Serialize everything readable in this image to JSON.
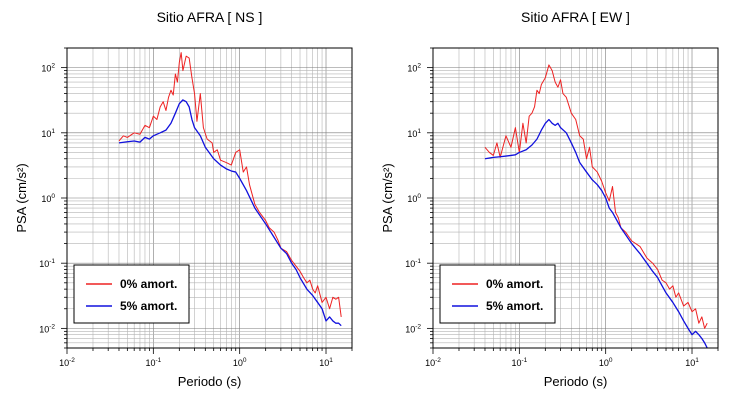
{
  "chart_data": [
    {
      "type": "line",
      "title": "Sitio AFRA [ NS ]",
      "xlabel": "Periodo (s)",
      "ylabel": "PSA (cm/s²)",
      "x_scale": "log",
      "y_scale": "log",
      "xlim": [
        0.01,
        20
      ],
      "ylim": [
        0.005,
        200
      ],
      "x_ticks": [
        {
          "base": "10",
          "exp": "-2"
        },
        {
          "base": "10",
          "exp": "-1"
        },
        {
          "base": "10",
          "exp": "0"
        },
        {
          "base": "10",
          "exp": "1"
        }
      ],
      "y_ticks": [
        {
          "base": "10",
          "exp": "-2"
        },
        {
          "base": "10",
          "exp": "-1"
        },
        {
          "base": "10",
          "exp": "0"
        },
        {
          "base": "10",
          "exp": "1"
        },
        {
          "base": "10",
          "exp": "2"
        }
      ],
      "grid": true,
      "legend_position": "bottom-left",
      "series": [
        {
          "name": "0% amort.",
          "color": "#ee2222",
          "points": [
            [
              0.04,
              7.5
            ],
            [
              0.045,
              9
            ],
            [
              0.05,
              8.5
            ],
            [
              0.06,
              10
            ],
            [
              0.07,
              9.5
            ],
            [
              0.08,
              13
            ],
            [
              0.09,
              12
            ],
            [
              0.1,
              18
            ],
            [
              0.11,
              16
            ],
            [
              0.12,
              25
            ],
            [
              0.13,
              30
            ],
            [
              0.14,
              22
            ],
            [
              0.15,
              35
            ],
            [
              0.16,
              45
            ],
            [
              0.17,
              38
            ],
            [
              0.18,
              80
            ],
            [
              0.19,
              60
            ],
            [
              0.2,
              120
            ],
            [
              0.21,
              170
            ],
            [
              0.22,
              90
            ],
            [
              0.24,
              150
            ],
            [
              0.26,
              140
            ],
            [
              0.28,
              70
            ],
            [
              0.3,
              40
            ],
            [
              0.32,
              15
            ],
            [
              0.35,
              40
            ],
            [
              0.38,
              12
            ],
            [
              0.42,
              8
            ],
            [
              0.48,
              7
            ],
            [
              0.5,
              5
            ],
            [
              0.55,
              5.5
            ],
            [
              0.6,
              3.8
            ],
            [
              0.7,
              3.5
            ],
            [
              0.8,
              3.2
            ],
            [
              0.9,
              5
            ],
            [
              1.0,
              5.5
            ],
            [
              1.1,
              2.5
            ],
            [
              1.2,
              3
            ],
            [
              1.3,
              1.6
            ],
            [
              1.5,
              0.8
            ],
            [
              1.7,
              0.6
            ],
            [
              2.0,
              0.45
            ],
            [
              2.2,
              0.35
            ],
            [
              2.5,
              0.3
            ],
            [
              2.8,
              0.22
            ],
            [
              3.0,
              0.17
            ],
            [
              3.5,
              0.15
            ],
            [
              4.0,
              0.11
            ],
            [
              4.5,
              0.09
            ],
            [
              5.0,
              0.075
            ],
            [
              5.5,
              0.06
            ],
            [
              6.0,
              0.05
            ],
            [
              6.5,
              0.055
            ],
            [
              7.0,
              0.04
            ],
            [
              7.5,
              0.035
            ],
            [
              8.0,
              0.045
            ],
            [
              9.0,
              0.025
            ],
            [
              10.0,
              0.03
            ],
            [
              11.0,
              0.02
            ],
            [
              12.0,
              0.03
            ],
            [
              13.0,
              0.028
            ],
            [
              14.0,
              0.03
            ],
            [
              15.0,
              0.015
            ]
          ]
        },
        {
          "name": "5% amort.",
          "color": "#1111dd",
          "points": [
            [
              0.04,
              7
            ],
            [
              0.05,
              7.3
            ],
            [
              0.06,
              7.5
            ],
            [
              0.07,
              7.2
            ],
            [
              0.08,
              8.5
            ],
            [
              0.09,
              8
            ],
            [
              0.1,
              9
            ],
            [
              0.12,
              10
            ],
            [
              0.14,
              11
            ],
            [
              0.16,
              14
            ],
            [
              0.18,
              20
            ],
            [
              0.2,
              28
            ],
            [
              0.22,
              32
            ],
            [
              0.24,
              30
            ],
            [
              0.26,
              25
            ],
            [
              0.28,
              16
            ],
            [
              0.3,
              12
            ],
            [
              0.35,
              9
            ],
            [
              0.4,
              6
            ],
            [
              0.5,
              4
            ],
            [
              0.6,
              3.2
            ],
            [
              0.7,
              2.8
            ],
            [
              0.8,
              2.6
            ],
            [
              0.9,
              2.5
            ],
            [
              1.0,
              2
            ],
            [
              1.2,
              1.3
            ],
            [
              1.5,
              0.7
            ],
            [
              2.0,
              0.4
            ],
            [
              2.5,
              0.25
            ],
            [
              3.0,
              0.17
            ],
            [
              3.5,
              0.14
            ],
            [
              4.0,
              0.1
            ],
            [
              4.5,
              0.08
            ],
            [
              5.0,
              0.06
            ],
            [
              6.0,
              0.04
            ],
            [
              7.0,
              0.032
            ],
            [
              8.0,
              0.025
            ],
            [
              9.0,
              0.02
            ],
            [
              10.0,
              0.013
            ],
            [
              11.0,
              0.015
            ],
            [
              12.0,
              0.013
            ],
            [
              13.0,
              0.012
            ],
            [
              14.0,
              0.012
            ],
            [
              15.0,
              0.011
            ]
          ]
        }
      ]
    },
    {
      "type": "line",
      "title": "Sitio AFRA [ EW ]",
      "xlabel": "Periodo (s)",
      "ylabel": "PSA (cm/s²)",
      "x_scale": "log",
      "y_scale": "log",
      "xlim": [
        0.01,
        20
      ],
      "ylim": [
        0.005,
        200
      ],
      "x_ticks": [
        {
          "base": "10",
          "exp": "-2"
        },
        {
          "base": "10",
          "exp": "-1"
        },
        {
          "base": "10",
          "exp": "0"
        },
        {
          "base": "10",
          "exp": "1"
        }
      ],
      "y_ticks": [
        {
          "base": "10",
          "exp": "-2"
        },
        {
          "base": "10",
          "exp": "-1"
        },
        {
          "base": "10",
          "exp": "0"
        },
        {
          "base": "10",
          "exp": "1"
        },
        {
          "base": "10",
          "exp": "2"
        }
      ],
      "grid": true,
      "legend_position": "bottom-left",
      "series": [
        {
          "name": "0% amort.",
          "color": "#ee2222",
          "points": [
            [
              0.04,
              6
            ],
            [
              0.045,
              5
            ],
            [
              0.05,
              4.5
            ],
            [
              0.055,
              7
            ],
            [
              0.06,
              4.2
            ],
            [
              0.07,
              9
            ],
            [
              0.08,
              6
            ],
            [
              0.09,
              12
            ],
            [
              0.1,
              5
            ],
            [
              0.11,
              14
            ],
            [
              0.12,
              7
            ],
            [
              0.13,
              18
            ],
            [
              0.14,
              20
            ],
            [
              0.15,
              25
            ],
            [
              0.16,
              45
            ],
            [
              0.17,
              40
            ],
            [
              0.18,
              55
            ],
            [
              0.2,
              70
            ],
            [
              0.22,
              110
            ],
            [
              0.24,
              90
            ],
            [
              0.26,
              60
            ],
            [
              0.28,
              50
            ],
            [
              0.3,
              65
            ],
            [
              0.32,
              40
            ],
            [
              0.35,
              35
            ],
            [
              0.4,
              20
            ],
            [
              0.45,
              16
            ],
            [
              0.5,
              9
            ],
            [
              0.55,
              8
            ],
            [
              0.6,
              4
            ],
            [
              0.65,
              6
            ],
            [
              0.7,
              3
            ],
            [
              0.8,
              2.5
            ],
            [
              0.9,
              1.8
            ],
            [
              1.0,
              1.2
            ],
            [
              1.1,
              0.9
            ],
            [
              1.2,
              1.5
            ],
            [
              1.3,
              0.6
            ],
            [
              1.4,
              0.5
            ],
            [
              1.5,
              0.35
            ],
            [
              1.7,
              0.3
            ],
            [
              2.0,
              0.22
            ],
            [
              2.5,
              0.18
            ],
            [
              3.0,
              0.12
            ],
            [
              3.5,
              0.1
            ],
            [
              4.0,
              0.08
            ],
            [
              4.5,
              0.055
            ],
            [
              5.0,
              0.05
            ],
            [
              5.5,
              0.04
            ],
            [
              6.0,
              0.045
            ],
            [
              6.5,
              0.03
            ],
            [
              7.0,
              0.035
            ],
            [
              8.0,
              0.022
            ],
            [
              9.0,
              0.025
            ],
            [
              10.0,
              0.018
            ],
            [
              11.0,
              0.02
            ],
            [
              12.0,
              0.012
            ],
            [
              13.0,
              0.015
            ],
            [
              14.0,
              0.01
            ],
            [
              15.0,
              0.012
            ]
          ]
        },
        {
          "name": "5% amort.",
          "color": "#1111dd",
          "points": [
            [
              0.04,
              4
            ],
            [
              0.05,
              4.2
            ],
            [
              0.06,
              4.3
            ],
            [
              0.07,
              4.4
            ],
            [
              0.08,
              4.5
            ],
            [
              0.09,
              4.6
            ],
            [
              0.1,
              5
            ],
            [
              0.12,
              5.5
            ],
            [
              0.14,
              6.5
            ],
            [
              0.16,
              8
            ],
            [
              0.18,
              11
            ],
            [
              0.2,
              14
            ],
            [
              0.22,
              16
            ],
            [
              0.24,
              14
            ],
            [
              0.26,
              13
            ],
            [
              0.28,
              14
            ],
            [
              0.3,
              12
            ],
            [
              0.35,
              10
            ],
            [
              0.4,
              7
            ],
            [
              0.45,
              5
            ],
            [
              0.5,
              3.5
            ],
            [
              0.6,
              2.5
            ],
            [
              0.7,
              1.9
            ],
            [
              0.8,
              1.6
            ],
            [
              0.9,
              1.3
            ],
            [
              1.0,
              1.0
            ],
            [
              1.1,
              0.7
            ],
            [
              1.2,
              0.6
            ],
            [
              1.5,
              0.35
            ],
            [
              2.0,
              0.2
            ],
            [
              2.5,
              0.14
            ],
            [
              3.0,
              0.1
            ],
            [
              3.5,
              0.075
            ],
            [
              4.0,
              0.06
            ],
            [
              4.5,
              0.045
            ],
            [
              5.0,
              0.035
            ],
            [
              6.0,
              0.025
            ],
            [
              7.0,
              0.018
            ],
            [
              8.0,
              0.013
            ],
            [
              9.0,
              0.01
            ],
            [
              10.0,
              0.008
            ],
            [
              11.0,
              0.009
            ],
            [
              12.0,
              0.008
            ],
            [
              13.0,
              0.007
            ],
            [
              14.0,
              0.006
            ],
            [
              15.0,
              0.005
            ]
          ]
        }
      ]
    }
  ]
}
